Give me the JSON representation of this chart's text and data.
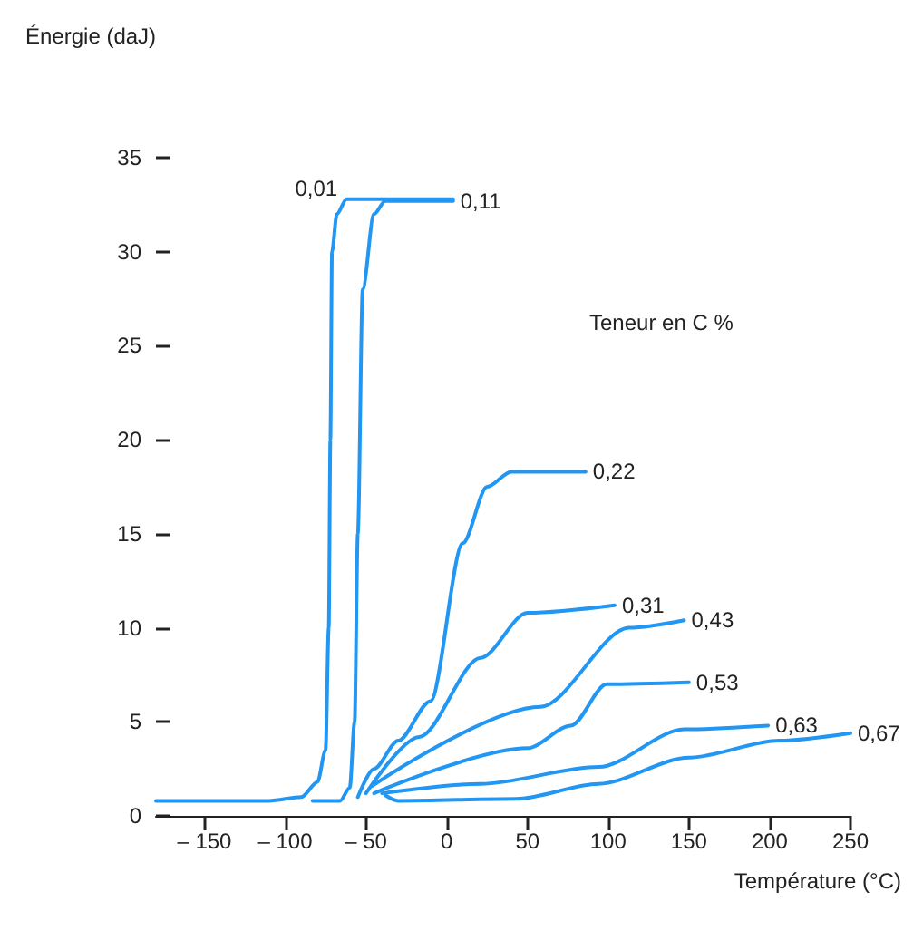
{
  "chart_data": {
    "type": "line",
    "ylabel": "Énergie (daJ)",
    "xlabel": "Température (°C)",
    "legend_title": "Teneur en C %",
    "xlim": [
      -180,
      250
    ],
    "ylim": [
      0,
      35
    ],
    "xticks": [
      {
        "value": -150,
        "label": "– 150"
      },
      {
        "value": -100,
        "label": "– 100"
      },
      {
        "value": -50,
        "label": "– 50"
      },
      0,
      50,
      100,
      150,
      200,
      250
    ],
    "yticks": [
      0,
      5,
      10,
      15,
      20,
      25,
      30,
      35
    ],
    "grid": false,
    "legend": false,
    "marker": "none",
    "line_style": "solid",
    "series": [
      {
        "name": "0,01",
        "color": "#2196f3",
        "x": [
          -180,
          -110,
          -90,
          -80,
          -75,
          -73,
          -72,
          -71,
          -68,
          -62,
          -55,
          4
        ],
        "values": [
          0.8,
          0.8,
          1,
          1.8,
          3.5,
          10,
          20,
          30,
          32,
          32.8,
          32.8,
          32.8
        ]
      },
      {
        "name": "0,11",
        "color": "#2196f3",
        "x": [
          -83,
          -66,
          -60,
          -57,
          -55,
          -52,
          -45,
          -38,
          4
        ],
        "values": [
          0.8,
          0.8,
          1.5,
          5,
          15,
          28,
          32,
          32.7,
          32.7
        ]
      },
      {
        "name": "0,22",
        "color": "#2196f3",
        "x": [
          -55,
          -45,
          -30,
          -10,
          10,
          25,
          40,
          86
        ],
        "values": [
          1,
          2.5,
          4,
          6.1,
          14.5,
          17.5,
          18.3,
          18.3
        ]
      },
      {
        "name": "0,31",
        "color": "#2196f3",
        "x": [
          -50,
          -17,
          21,
          50,
          104
        ],
        "values": [
          1.2,
          4.2,
          8.4,
          10.8,
          11.2
        ]
      },
      {
        "name": "0,43",
        "color": "#2196f3",
        "x": [
          -46,
          58,
          113,
          147
        ],
        "values": [
          1.6,
          5.8,
          10,
          10.4
        ]
      },
      {
        "name": "0,53",
        "color": "#2196f3",
        "x": [
          -45,
          50,
          77,
          99,
          150
        ],
        "values": [
          1.2,
          3.6,
          4.8,
          7,
          7.1
        ]
      },
      {
        "name": "0,63",
        "color": "#2196f3",
        "x": [
          -40,
          21,
          94,
          147,
          199
        ],
        "values": [
          1.2,
          1.7,
          2.6,
          4.6,
          4.8
        ]
      },
      {
        "name": "0,67",
        "color": "#2196f3",
        "x": [
          -38,
          -30,
          43,
          94,
          150,
          206,
          250
        ],
        "values": [
          1.1,
          0.8,
          0.9,
          1.7,
          3.1,
          4.0,
          4.4
        ]
      }
    ]
  }
}
